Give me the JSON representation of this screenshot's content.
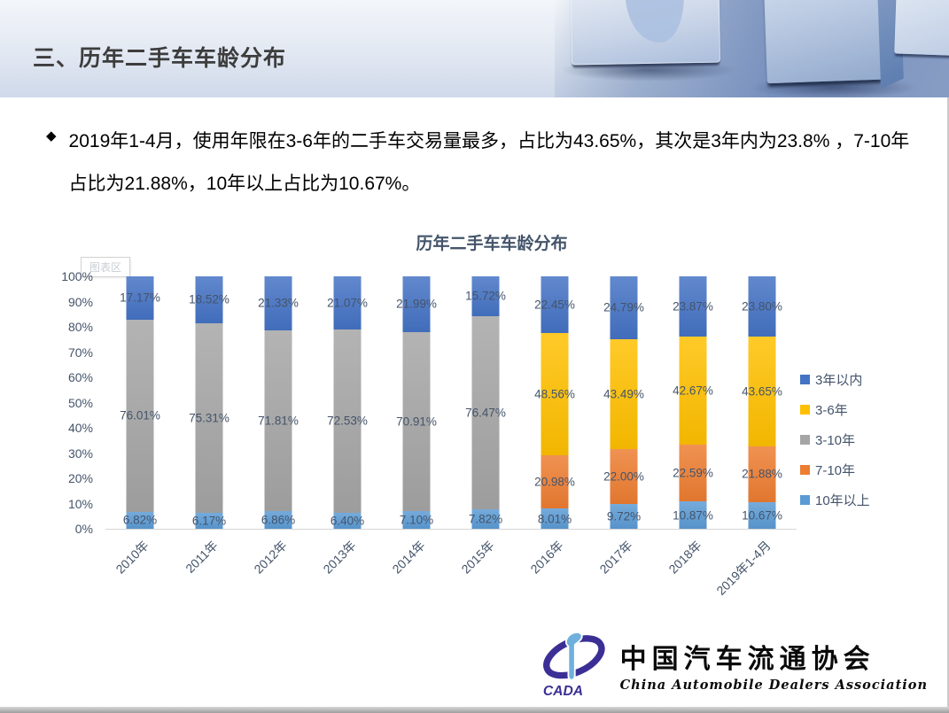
{
  "header": {
    "title": "三、历年二手车车龄分布"
  },
  "bullet": {
    "marker": "◆",
    "text": "2019年1-4月，使用年限在3-6年的二手车交易量最多，占比为43.65%，其次是3年内为23.8% ，7-10年占比为21.88%，10年以上占比为10.67%。"
  },
  "chart": {
    "area_tooltip": "图表区"
  },
  "chart_data": {
    "type": "bar",
    "stacked": true,
    "percent_stacked": true,
    "title": "历年二手车车龄分布",
    "categories": [
      "2010年",
      "2011年",
      "2012年",
      "2013年",
      "2014年",
      "2015年",
      "2016年",
      "2017年",
      "2018年",
      "2019年1-4月"
    ],
    "series": [
      {
        "name": "3年以内",
        "color": "#4472C4",
        "values": [
          17.17,
          18.52,
          21.33,
          21.07,
          21.99,
          15.72,
          22.45,
          24.79,
          23.87,
          23.8
        ]
      },
      {
        "name": "3-6年",
        "color": "#FFC000",
        "values": [
          null,
          null,
          null,
          null,
          null,
          null,
          48.56,
          43.49,
          42.67,
          43.65
        ]
      },
      {
        "name": "3-10年",
        "color": "#A5A5A5",
        "values": [
          76.01,
          75.31,
          71.81,
          72.53,
          70.91,
          76.47,
          null,
          null,
          null,
          null
        ]
      },
      {
        "name": "7-10年",
        "color": "#ED7D31",
        "values": [
          null,
          null,
          null,
          null,
          null,
          null,
          20.98,
          22.0,
          22.59,
          21.88
        ]
      },
      {
        "name": "10年以上",
        "color": "#5B9BD5",
        "values": [
          6.82,
          6.17,
          6.86,
          6.4,
          7.1,
          7.82,
          8.01,
          9.72,
          10.87,
          10.67
        ]
      }
    ],
    "stack_order_bottom_up": [
      4,
      3,
      2,
      1,
      0
    ],
    "y_ticks": [
      "100%",
      "90%",
      "80%",
      "70%",
      "60%",
      "50%",
      "40%",
      "30%",
      "20%",
      "10%",
      "0%"
    ],
    "ylim": [
      0,
      100
    ],
    "grid": false,
    "legend_position": "right",
    "label_format": "0.00%",
    "label_color": "#44546A"
  },
  "logo": {
    "cada": "CADA",
    "cn": "中国汽车流通协会",
    "en": "China  Automobile  Dealers   Association"
  },
  "colors": {
    "chart_text": "#44546A",
    "header_text": "#3d3d3d",
    "axis_line": "#d6d6d6"
  }
}
